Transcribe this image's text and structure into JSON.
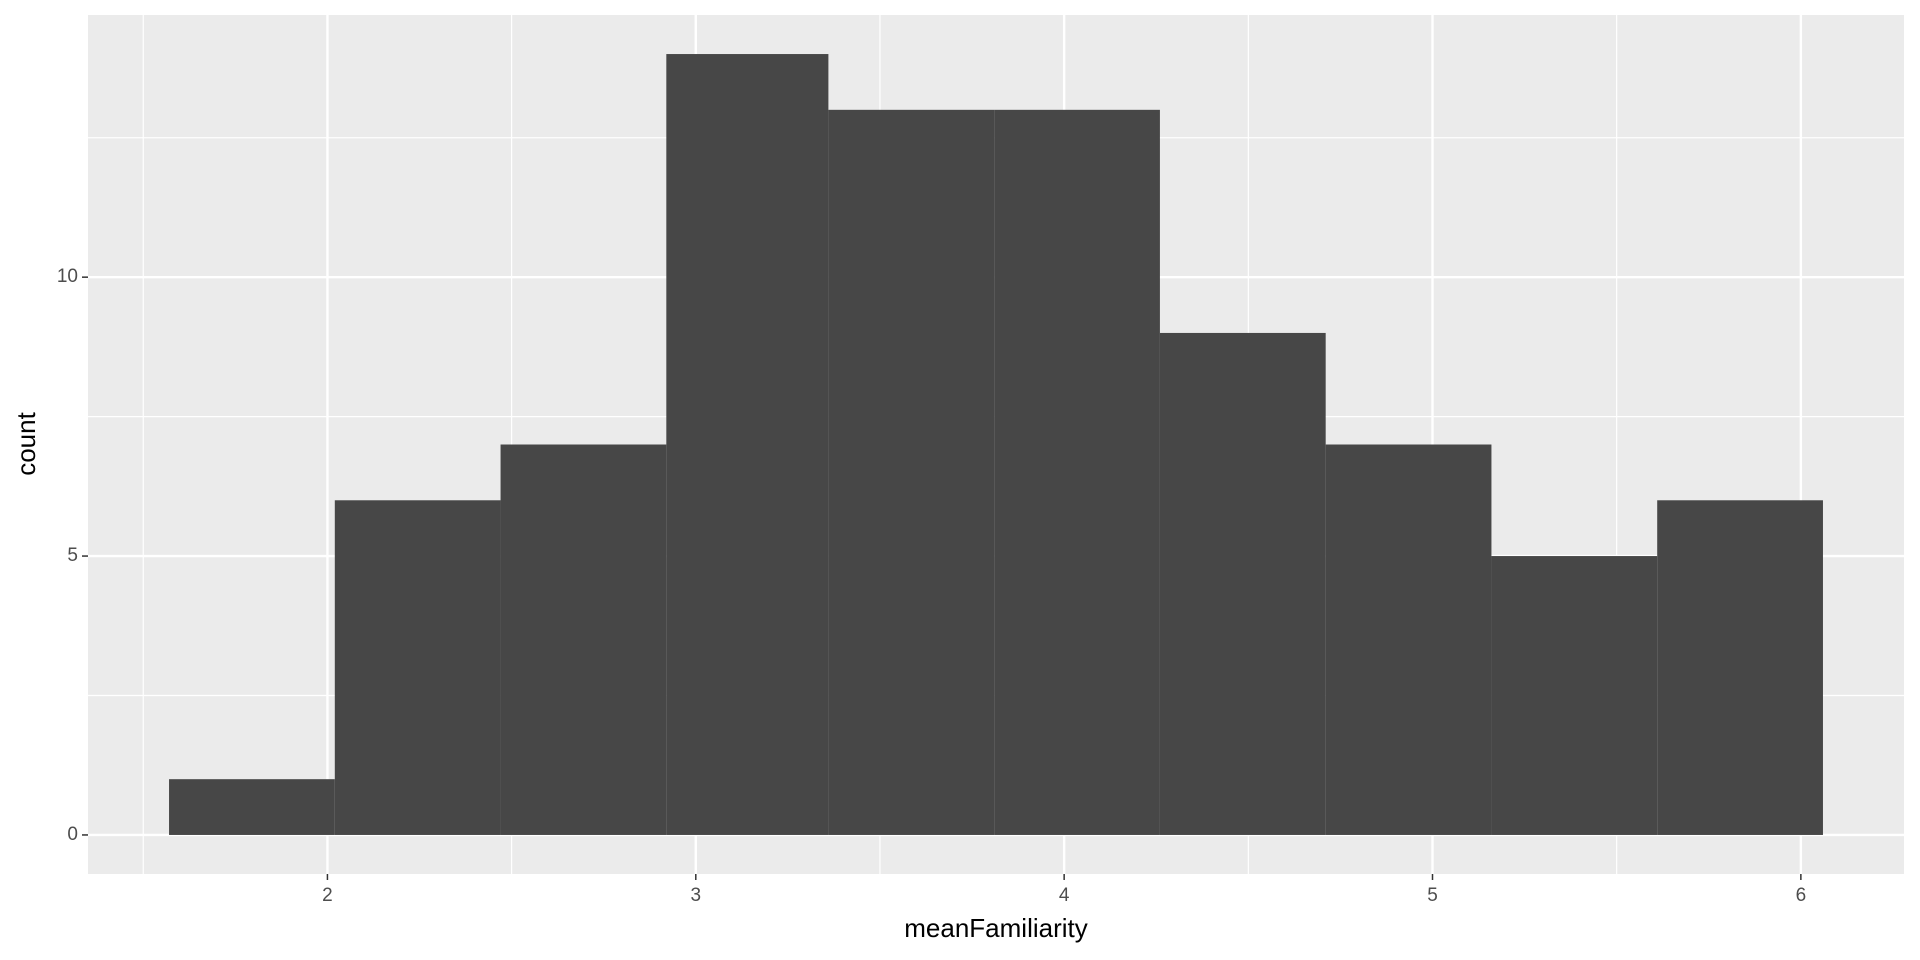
{
  "chart_data": {
    "type": "histogram",
    "x_label": "meanFamiliarity",
    "y_label": "count",
    "bins": [
      1.57,
      2.02,
      2.47,
      2.92,
      3.36,
      3.81,
      4.26,
      4.71,
      5.16,
      5.61,
      6.06
    ],
    "values": [
      1,
      6,
      7,
      14,
      13,
      13,
      9,
      7,
      5,
      6
    ],
    "color": "#474747",
    "xlim": [
      1.35,
      6.28
    ],
    "xticks": [
      2,
      3,
      4,
      5,
      6
    ],
    "ylim": [
      -0.7,
      14.7
    ],
    "yticks": [
      0,
      5,
      10
    ],
    "grid": true,
    "background": "#ebebeb"
  }
}
